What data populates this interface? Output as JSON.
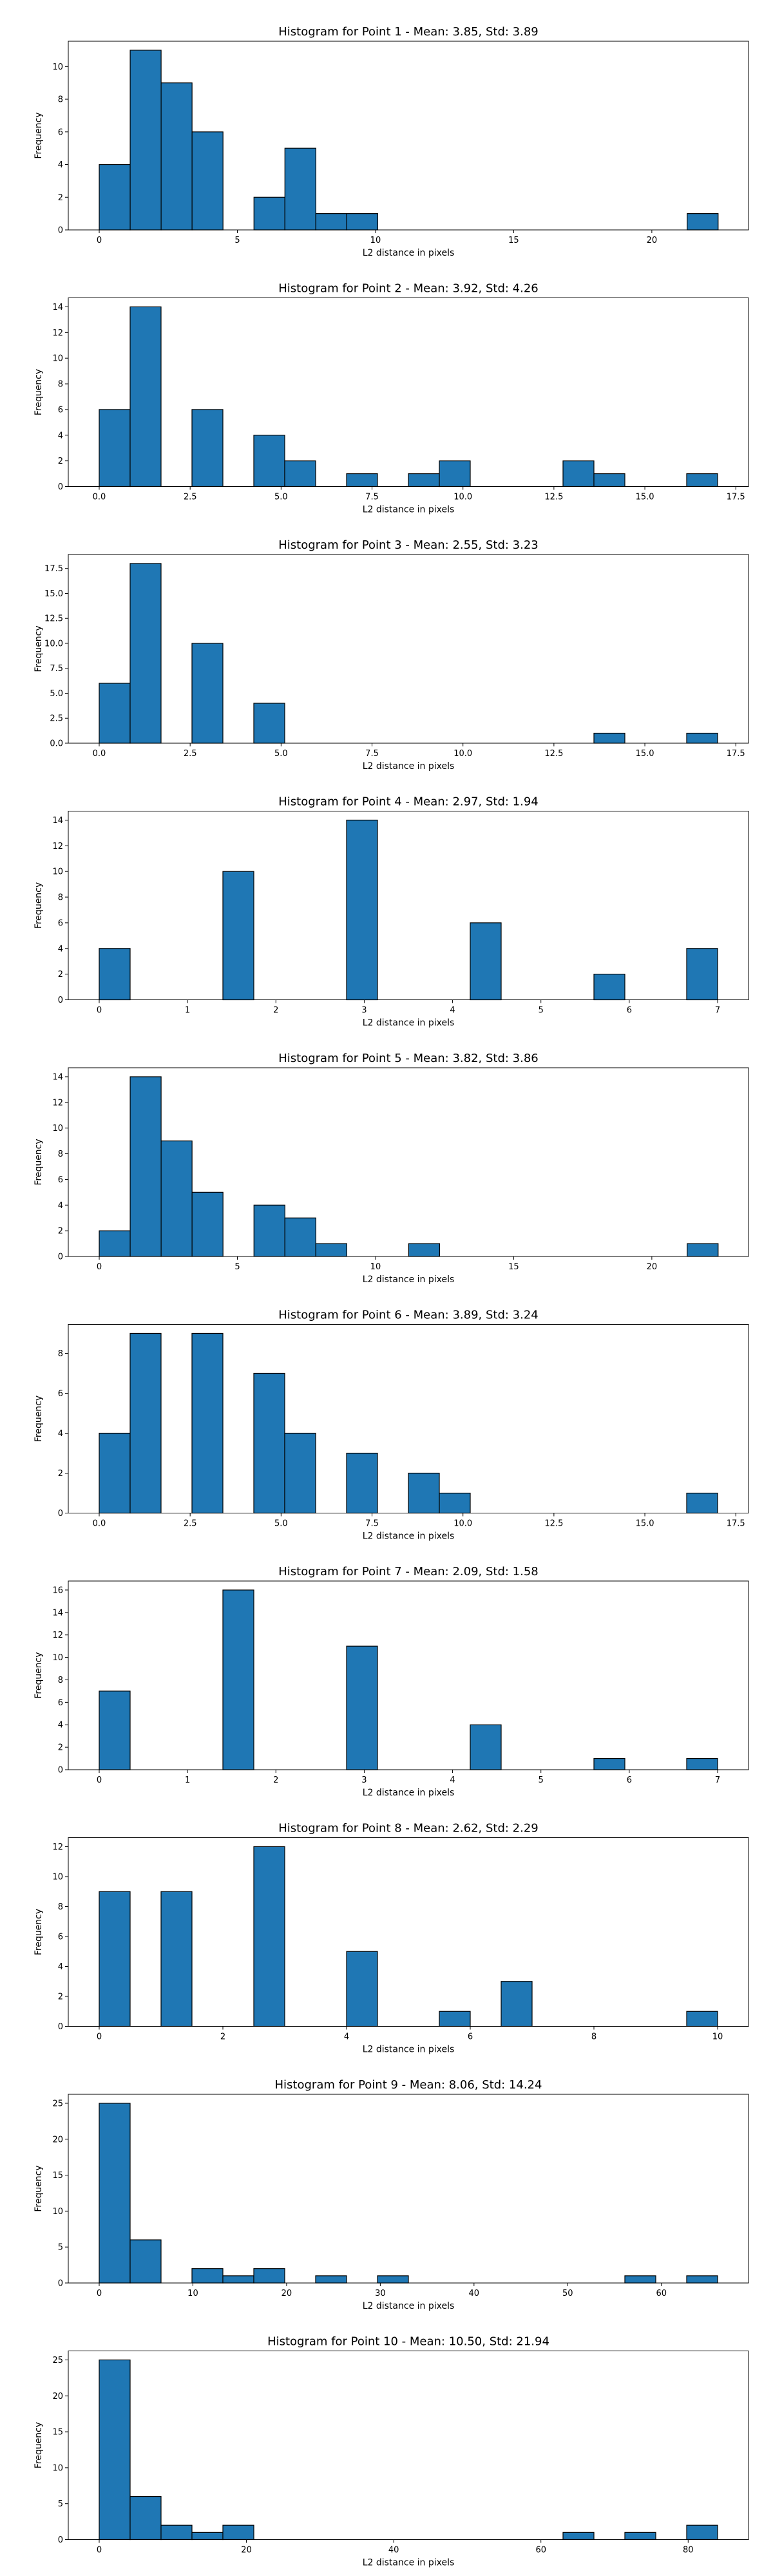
{
  "figure": {
    "bar_color": "#1f77b4",
    "edge_color": "#000000"
  },
  "chart_data": [
    {
      "type": "bar",
      "title": "Histogram for Point 1 - Mean: 3.85, Std: 3.89",
      "xlabel": "L2 distance in pixels",
      "ylabel": "Frequency",
      "xlim": [
        -1.12,
        23.5
      ],
      "ylim": [
        0,
        11.55
      ],
      "xticks": [
        0,
        5,
        10,
        15,
        20
      ],
      "xtick_labels": [
        "0",
        "5",
        "10",
        "15",
        "20"
      ],
      "yticks": [
        0,
        2,
        4,
        6,
        8,
        10
      ],
      "ytick_labels": [
        "0",
        "2",
        "4",
        "6",
        "8",
        "10"
      ],
      "bins": [
        0.0,
        1.12,
        2.24,
        3.36,
        4.48,
        5.6,
        6.72,
        7.84,
        8.96,
        10.08,
        11.2,
        12.32,
        13.44,
        14.56,
        15.68,
        16.8,
        17.92,
        19.04,
        20.16,
        21.28,
        22.4
      ],
      "counts": [
        4,
        11,
        9,
        6,
        0,
        2,
        5,
        1,
        1,
        0,
        0,
        0,
        0,
        0,
        0,
        0,
        0,
        0,
        0,
        1
      ]
    },
    {
      "type": "bar",
      "title": "Histogram for Point 2 - Mean: 3.92, Std: 4.26",
      "xlabel": "L2 distance in pixels",
      "ylabel": "Frequency",
      "xlim": [
        -0.85,
        17.85
      ],
      "ylim": [
        0,
        14.7
      ],
      "xticks": [
        0.0,
        2.5,
        5.0,
        7.5,
        10.0,
        12.5,
        15.0,
        17.5
      ],
      "xtick_labels": [
        "0.0",
        "2.5",
        "5.0",
        "7.5",
        "10.0",
        "12.5",
        "15.0",
        "17.5"
      ],
      "yticks": [
        0,
        2,
        4,
        6,
        8,
        10,
        12,
        14
      ],
      "ytick_labels": [
        "0",
        "2",
        "4",
        "6",
        "8",
        "10",
        "12",
        "14"
      ],
      "bins": [
        0.0,
        0.85,
        1.7,
        2.55,
        3.4,
        4.25,
        5.1,
        5.95,
        6.8,
        7.65,
        8.5,
        9.35,
        10.2,
        11.05,
        11.9,
        12.75,
        13.6,
        14.45,
        15.3,
        16.15,
        17.0
      ],
      "counts": [
        6,
        14,
        0,
        6,
        0,
        4,
        2,
        0,
        1,
        0,
        1,
        2,
        0,
        0,
        0,
        2,
        1,
        0,
        0,
        1
      ]
    },
    {
      "type": "bar",
      "title": "Histogram for Point 3 - Mean: 2.55, Std: 3.23",
      "xlabel": "L2 distance in pixels",
      "ylabel": "Frequency",
      "xlim": [
        -0.85,
        17.85
      ],
      "ylim": [
        0,
        18.9
      ],
      "xticks": [
        0.0,
        2.5,
        5.0,
        7.5,
        10.0,
        12.5,
        15.0,
        17.5
      ],
      "xtick_labels": [
        "0.0",
        "2.5",
        "5.0",
        "7.5",
        "10.0",
        "12.5",
        "15.0",
        "17.5"
      ],
      "yticks": [
        0.0,
        2.5,
        5.0,
        7.5,
        10.0,
        12.5,
        15.0,
        17.5
      ],
      "ytick_labels": [
        "0.0",
        "2.5",
        "5.0",
        "7.5",
        "10.0",
        "12.5",
        "15.0",
        "17.5"
      ],
      "bins": [
        0.0,
        0.85,
        1.7,
        2.55,
        3.4,
        4.25,
        5.1,
        5.95,
        6.8,
        7.65,
        8.5,
        9.35,
        10.2,
        11.05,
        11.9,
        12.75,
        13.6,
        14.45,
        15.3,
        16.15,
        17.0
      ],
      "counts": [
        6,
        18,
        0,
        10,
        0,
        4,
        0,
        0,
        0,
        0,
        0,
        0,
        0,
        0,
        0,
        0,
        1,
        0,
        0,
        1
      ]
    },
    {
      "type": "bar",
      "title": "Histogram for Point 4 - Mean: 2.97, Std: 1.94",
      "xlabel": "L2 distance in pixels",
      "ylabel": "Frequency",
      "xlim": [
        -0.35,
        7.35
      ],
      "ylim": [
        0,
        14.7
      ],
      "xticks": [
        0,
        1,
        2,
        3,
        4,
        5,
        6,
        7
      ],
      "xtick_labels": [
        "0",
        "1",
        "2",
        "3",
        "4",
        "5",
        "6",
        "7"
      ],
      "yticks": [
        0,
        2,
        4,
        6,
        8,
        10,
        12,
        14
      ],
      "ytick_labels": [
        "0",
        "2",
        "4",
        "6",
        "8",
        "10",
        "12",
        "14"
      ],
      "bins": [
        0.0,
        0.35,
        0.7,
        1.05,
        1.4,
        1.75,
        2.1,
        2.45,
        2.8,
        3.15,
        3.5,
        3.85,
        4.2,
        4.55,
        4.9,
        5.25,
        5.6,
        5.95,
        6.3,
        6.65,
        7.0
      ],
      "counts": [
        4,
        0,
        0,
        0,
        10,
        0,
        0,
        0,
        14,
        0,
        0,
        0,
        6,
        0,
        0,
        0,
        2,
        0,
        0,
        4
      ]
    },
    {
      "type": "bar",
      "title": "Histogram for Point 5 - Mean: 3.82, Std: 3.86",
      "xlabel": "L2 distance in pixels",
      "ylabel": "Frequency",
      "xlim": [
        -1.12,
        23.5
      ],
      "ylim": [
        0,
        14.7
      ],
      "xticks": [
        0,
        5,
        10,
        15,
        20
      ],
      "xtick_labels": [
        "0",
        "5",
        "10",
        "15",
        "20"
      ],
      "yticks": [
        0,
        2,
        4,
        6,
        8,
        10,
        12,
        14
      ],
      "ytick_labels": [
        "0",
        "2",
        "4",
        "6",
        "8",
        "10",
        "12",
        "14"
      ],
      "bins": [
        0.0,
        1.12,
        2.24,
        3.36,
        4.48,
        5.6,
        6.72,
        7.84,
        8.96,
        10.08,
        11.2,
        12.32,
        13.44,
        14.56,
        15.68,
        16.8,
        17.92,
        19.04,
        20.16,
        21.28,
        22.4
      ],
      "counts": [
        2,
        14,
        9,
        5,
        0,
        4,
        3,
        1,
        0,
        0,
        1,
        0,
        0,
        0,
        0,
        0,
        0,
        0,
        0,
        1
      ]
    },
    {
      "type": "bar",
      "title": "Histogram for Point 6 - Mean: 3.89, Std: 3.24",
      "xlabel": "L2 distance in pixels",
      "ylabel": "Frequency",
      "xlim": [
        -0.85,
        17.85
      ],
      "ylim": [
        0,
        9.45
      ],
      "xticks": [
        0.0,
        2.5,
        5.0,
        7.5,
        10.0,
        12.5,
        15.0,
        17.5
      ],
      "xtick_labels": [
        "0.0",
        "2.5",
        "5.0",
        "7.5",
        "10.0",
        "12.5",
        "15.0",
        "17.5"
      ],
      "yticks": [
        0,
        2,
        4,
        6,
        8
      ],
      "ytick_labels": [
        "0",
        "2",
        "4",
        "6",
        "8"
      ],
      "bins": [
        0.0,
        0.85,
        1.7,
        2.55,
        3.4,
        4.25,
        5.1,
        5.95,
        6.8,
        7.65,
        8.5,
        9.35,
        10.2,
        11.05,
        11.9,
        12.75,
        13.6,
        14.45,
        15.3,
        16.15,
        17.0
      ],
      "counts": [
        4,
        9,
        0,
        9,
        0,
        7,
        4,
        0,
        3,
        0,
        2,
        1,
        0,
        0,
        0,
        0,
        0,
        0,
        0,
        1
      ]
    },
    {
      "type": "bar",
      "title": "Histogram for Point 7 - Mean: 2.09, Std: 1.58",
      "xlabel": "L2 distance in pixels",
      "ylabel": "Frequency",
      "xlim": [
        -0.35,
        7.35
      ],
      "ylim": [
        0,
        16.8
      ],
      "xticks": [
        0,
        1,
        2,
        3,
        4,
        5,
        6,
        7
      ],
      "xtick_labels": [
        "0",
        "1",
        "2",
        "3",
        "4",
        "5",
        "6",
        "7"
      ],
      "yticks": [
        0,
        2,
        4,
        6,
        8,
        10,
        12,
        14,
        16
      ],
      "ytick_labels": [
        "0",
        "2",
        "4",
        "6",
        "8",
        "10",
        "12",
        "14",
        "16"
      ],
      "bins": [
        0.0,
        0.35,
        0.7,
        1.05,
        1.4,
        1.75,
        2.1,
        2.45,
        2.8,
        3.15,
        3.5,
        3.85,
        4.2,
        4.55,
        4.9,
        5.25,
        5.6,
        5.95,
        6.3,
        6.65,
        7.0
      ],
      "counts": [
        7,
        0,
        0,
        0,
        16,
        0,
        0,
        0,
        11,
        0,
        0,
        0,
        4,
        0,
        0,
        0,
        1,
        0,
        0,
        1
      ]
    },
    {
      "type": "bar",
      "title": "Histogram for Point 8 - Mean: 2.62, Std: 2.29",
      "xlabel": "L2 distance in pixels",
      "ylabel": "Frequency",
      "xlim": [
        -0.5,
        10.5
      ],
      "ylim": [
        0,
        12.6
      ],
      "xticks": [
        0,
        2,
        4,
        6,
        8,
        10
      ],
      "xtick_labels": [
        "0",
        "2",
        "4",
        "6",
        "8",
        "10"
      ],
      "yticks": [
        0,
        2,
        4,
        6,
        8,
        10,
        12
      ],
      "ytick_labels": [
        "0",
        "2",
        "4",
        "6",
        "8",
        "10",
        "12"
      ],
      "bins": [
        0.0,
        0.5,
        1.0,
        1.5,
        2.0,
        2.5,
        3.0,
        3.5,
        4.0,
        4.5,
        5.0,
        5.5,
        6.0,
        6.5,
        7.0,
        7.5,
        8.0,
        8.5,
        9.0,
        9.5,
        10.0
      ],
      "counts": [
        9,
        0,
        9,
        0,
        0,
        12,
        0,
        0,
        5,
        0,
        0,
        1,
        0,
        3,
        0,
        0,
        0,
        0,
        0,
        1
      ]
    },
    {
      "type": "bar",
      "title": "Histogram for Point 9 - Mean: 8.06, Std: 14.24",
      "xlabel": "L2 distance in pixels",
      "ylabel": "Frequency",
      "xlim": [
        -3.3,
        69.3
      ],
      "ylim": [
        0,
        26.25
      ],
      "xticks": [
        0,
        10,
        20,
        30,
        40,
        50,
        60
      ],
      "xtick_labels": [
        "0",
        "10",
        "20",
        "30",
        "40",
        "50",
        "60"
      ],
      "yticks": [
        0,
        5,
        10,
        15,
        20,
        25
      ],
      "ytick_labels": [
        "0",
        "5",
        "10",
        "15",
        "20",
        "25"
      ],
      "bins": [
        0.0,
        3.3,
        6.6,
        9.9,
        13.2,
        16.5,
        19.8,
        23.1,
        26.4,
        29.7,
        33.0,
        36.3,
        39.6,
        42.9,
        46.2,
        49.5,
        52.8,
        56.1,
        59.4,
        62.7,
        66.0
      ],
      "counts": [
        25,
        6,
        0,
        2,
        1,
        2,
        0,
        1,
        0,
        1,
        0,
        0,
        0,
        0,
        0,
        0,
        0,
        1,
        0,
        1
      ]
    },
    {
      "type": "bar",
      "title": "Histogram for Point 10 - Mean: 10.50, Std: 21.94",
      "xlabel": "L2 distance in pixels",
      "ylabel": "Frequency",
      "xlim": [
        -4.2,
        88.2
      ],
      "ylim": [
        0,
        26.25
      ],
      "xticks": [
        0,
        20,
        40,
        60,
        80
      ],
      "xtick_labels": [
        "0",
        "20",
        "40",
        "60",
        "80"
      ],
      "yticks": [
        0,
        5,
        10,
        15,
        20,
        25
      ],
      "ytick_labels": [
        "0",
        "5",
        "10",
        "15",
        "20",
        "25"
      ],
      "bins": [
        0.0,
        4.2,
        8.4,
        12.6,
        16.8,
        21.0,
        25.2,
        29.4,
        33.6,
        37.8,
        42.0,
        46.2,
        50.4,
        54.6,
        58.8,
        63.0,
        67.2,
        71.4,
        75.6,
        79.8,
        84.0
      ],
      "counts": [
        25,
        6,
        2,
        1,
        2,
        0,
        0,
        0,
        0,
        0,
        0,
        0,
        0,
        0,
        0,
        1,
        0,
        1,
        0,
        2
      ]
    }
  ]
}
